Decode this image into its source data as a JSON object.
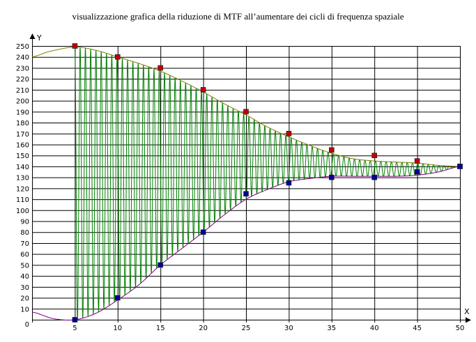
{
  "chart_data": {
    "type": "line",
    "title": "visualizzazione grafica della riduzione di MTF all’aumentare dei cicli di frequenza spaziale",
    "xlabel": "X",
    "ylabel": "Y",
    "xlim": [
      0,
      50
    ],
    "ylim": [
      0,
      250
    ],
    "xticks": [
      0,
      5,
      10,
      15,
      20,
      25,
      30,
      35,
      40,
      45,
      50
    ],
    "yticks": [
      10,
      20,
      30,
      40,
      50,
      60,
      70,
      80,
      90,
      100,
      110,
      120,
      130,
      140,
      150,
      160,
      170,
      180,
      190,
      200,
      210,
      220,
      230,
      240,
      250
    ],
    "origin_label": "0",
    "grid": true,
    "colors": {
      "upper_curve": "#808000",
      "lower_curve": "#800080",
      "oscillation": "#008000",
      "upper_markers": "#c00000",
      "lower_markers": "#000099",
      "grid": "#000000"
    },
    "series": [
      {
        "kind": "markers",
        "role": "upper",
        "points": [
          [
            5,
            250
          ],
          [
            10,
            240
          ],
          [
            15,
            230
          ],
          [
            20,
            210
          ],
          [
            25,
            190
          ],
          [
            30,
            170
          ],
          [
            35,
            155
          ],
          [
            40,
            150
          ],
          [
            45,
            145
          ],
          [
            50,
            140
          ]
        ]
      },
      {
        "kind": "markers",
        "role": "lower",
        "points": [
          [
            5,
            0
          ],
          [
            10,
            20
          ],
          [
            15,
            50
          ],
          [
            20,
            80
          ],
          [
            25,
            115
          ],
          [
            30,
            125
          ],
          [
            35,
            130
          ],
          [
            40,
            130
          ],
          [
            45,
            135
          ],
          [
            50,
            140
          ]
        ]
      },
      {
        "kind": "curve",
        "role": "upper",
        "points": [
          [
            0,
            240
          ],
          [
            2,
            245
          ],
          [
            5,
            249
          ],
          [
            7.5,
            246
          ],
          [
            10,
            240
          ],
          [
            12.5,
            234
          ],
          [
            15,
            227
          ],
          [
            17.5,
            218
          ],
          [
            20,
            208
          ],
          [
            22.5,
            197
          ],
          [
            25,
            187
          ],
          [
            27.5,
            176
          ],
          [
            30,
            167
          ],
          [
            32.5,
            159
          ],
          [
            35,
            152
          ],
          [
            37.5,
            147
          ],
          [
            40,
            145
          ],
          [
            42.5,
            144
          ],
          [
            45,
            143
          ],
          [
            47.5,
            141
          ],
          [
            50,
            140
          ]
        ]
      },
      {
        "kind": "curve",
        "role": "lower",
        "points": [
          [
            0,
            7
          ],
          [
            2.5,
            1
          ],
          [
            5,
            0
          ],
          [
            7.5,
            6
          ],
          [
            10,
            18
          ],
          [
            12.5,
            32
          ],
          [
            15,
            50
          ],
          [
            17.5,
            65
          ],
          [
            20,
            80
          ],
          [
            22.5,
            96
          ],
          [
            25,
            110
          ],
          [
            27.5,
            119
          ],
          [
            30,
            126
          ],
          [
            32.5,
            129
          ],
          [
            35,
            131
          ],
          [
            37.5,
            131
          ],
          [
            40,
            131
          ],
          [
            42.5,
            131
          ],
          [
            45,
            132
          ],
          [
            47.5,
            135
          ],
          [
            50,
            140
          ]
        ]
      },
      {
        "kind": "oscillation",
        "role": "signal",
        "x_start": 5,
        "x_end": 50,
        "cycles": 73
      }
    ]
  }
}
